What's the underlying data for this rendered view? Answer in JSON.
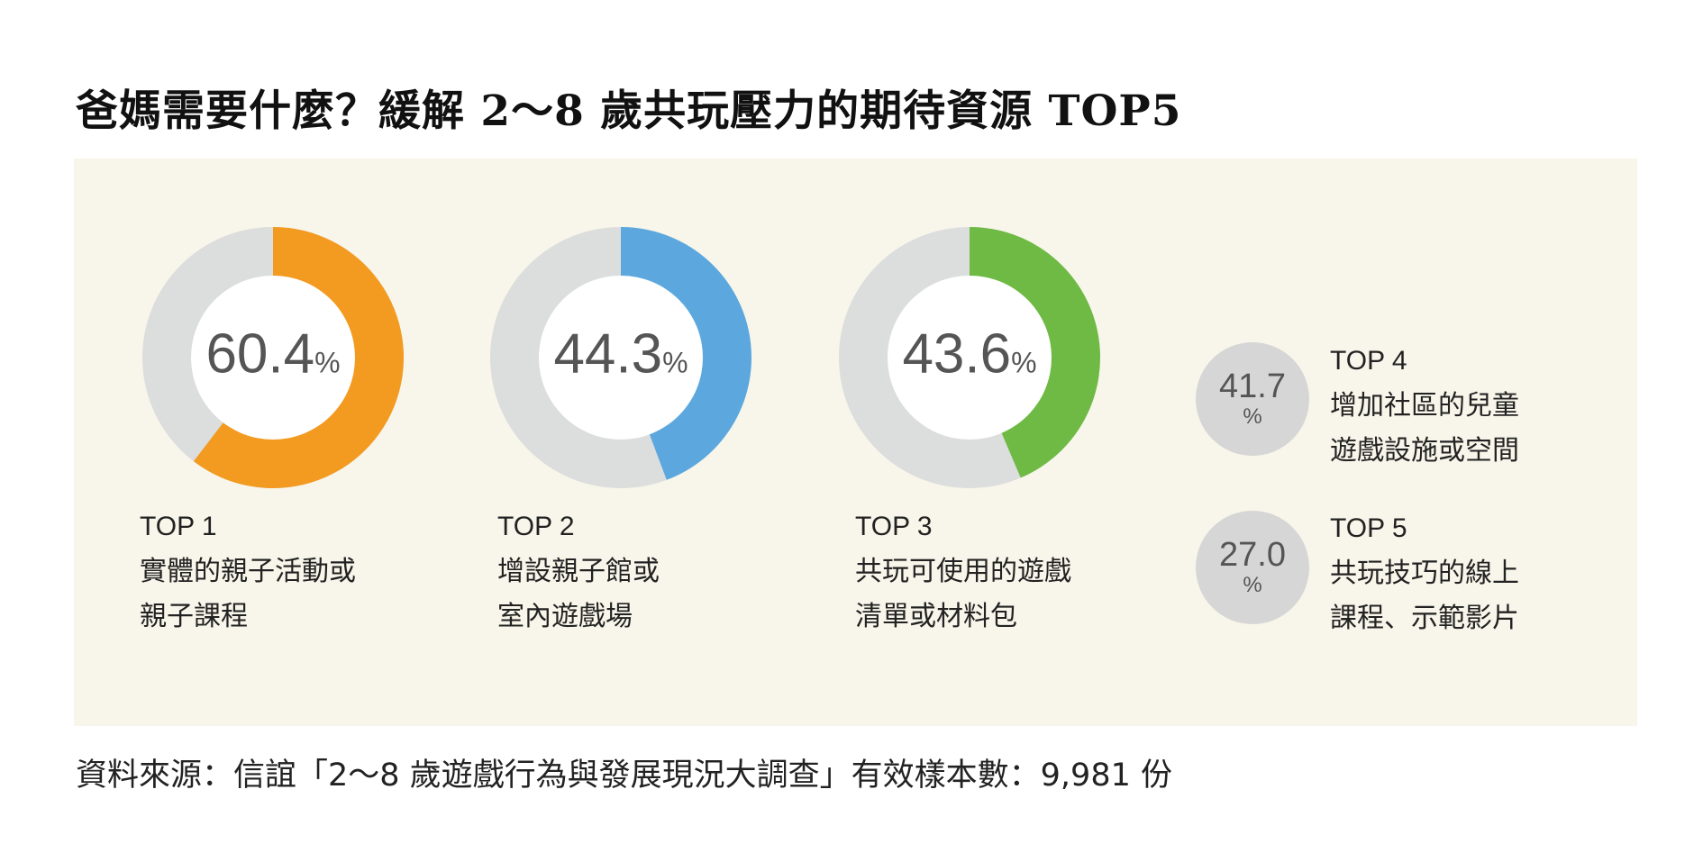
{
  "title": "爸媽需要什麼？緩解 2～8 歲共玩壓力的期待資源 TOP5",
  "footer": "資料來源：信誼「2～8 歲遊戲行為與發展現況大調查」有效樣本數：9,981 份",
  "chart_data": {
    "type": "pie",
    "title": "爸媽需要什麼？緩解 2～8 歲共玩壓力的期待資源 TOP5",
    "unit": "%",
    "items": [
      {
        "rank": "TOP 1",
        "value": 60.4,
        "value_text": "60.4",
        "label_lines": [
          "實體的親子活動或",
          "親子課程"
        ],
        "color": "#f39a21",
        "style": "donut"
      },
      {
        "rank": "TOP 2",
        "value": 44.3,
        "value_text": "44.3",
        "label_lines": [
          "增設親子館或",
          "室內遊戲場"
        ],
        "color": "#5ca8de",
        "style": "donut"
      },
      {
        "rank": "TOP 3",
        "value": 43.6,
        "value_text": "43.6",
        "label_lines": [
          "共玩可使用的遊戲",
          "清單或材料包"
        ],
        "color": "#6eba44",
        "style": "donut"
      },
      {
        "rank": "TOP 4",
        "value": 41.7,
        "value_text": "41.7",
        "label_lines": [
          "增加社區的兒童",
          "遊戲設施或空間"
        ],
        "color": "#d6d6d6",
        "style": "circle"
      },
      {
        "rank": "TOP 5",
        "value": 27.0,
        "value_text": "27.0",
        "label_lines": [
          "共玩技巧的線上",
          "課程、示範影片"
        ],
        "color": "#d6d6d6",
        "style": "circle"
      }
    ],
    "remainder_color": "#dcdddd"
  }
}
